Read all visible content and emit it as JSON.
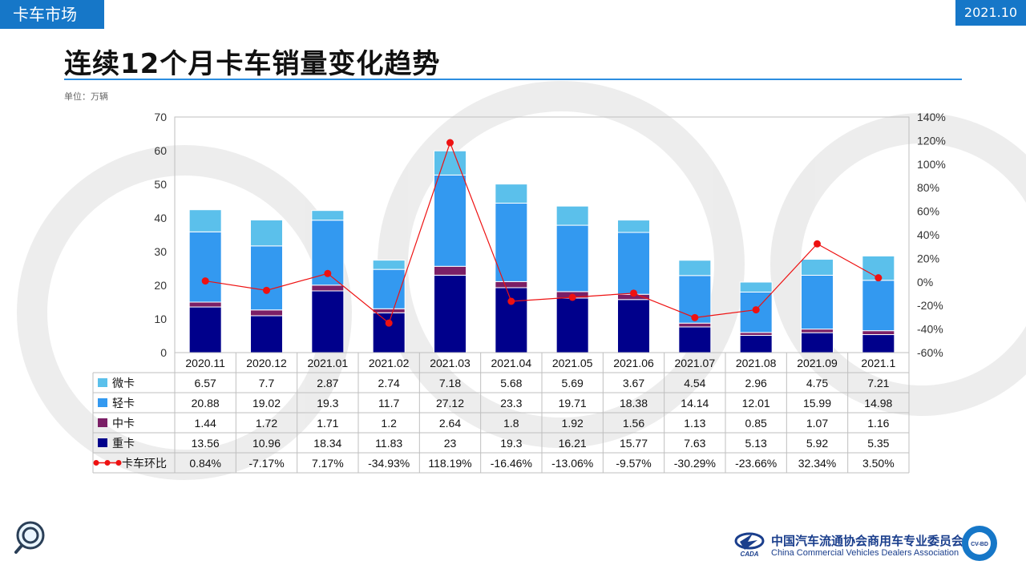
{
  "header": {
    "section_tag": "卡车市场",
    "date": "2021.10",
    "title": "连续12个月卡车销量变化趋势",
    "unit": "单位：万辆"
  },
  "footer": {
    "org_cn": "中国汽车流通协会商用车专业委员会",
    "org_en": "China Commercial Vehicles Dealers Association",
    "logo_text": "CADA",
    "badge_text": "CV-BD"
  },
  "colors": {
    "micro": "#5bc0eb",
    "light": "#3399f0",
    "medium": "#7b1f66",
    "heavy": "#00008b",
    "mom": "#ee1111",
    "accent": "#1677c8"
  },
  "chart_data": {
    "type": "bar",
    "stacked": true,
    "categories": [
      "2020.11",
      "2020.12",
      "2021.01",
      "2021.02",
      "2021.03",
      "2021.04",
      "2021.05",
      "2021.06",
      "2021.07",
      "2021.08",
      "2021.09",
      "2021.1"
    ],
    "series": [
      {
        "name": "微卡",
        "values": [
          6.57,
          7.7,
          2.87,
          2.74,
          7.18,
          5.68,
          5.69,
          3.67,
          4.54,
          2.96,
          4.75,
          7.21
        ]
      },
      {
        "name": "轻卡",
        "values": [
          20.88,
          19.02,
          19.3,
          11.7,
          27.12,
          23.3,
          19.71,
          18.38,
          14.14,
          12.01,
          15.99,
          14.98
        ]
      },
      {
        "name": "中卡",
        "values": [
          1.44,
          1.72,
          1.71,
          1.2,
          2.64,
          1.8,
          1.92,
          1.56,
          1.13,
          0.85,
          1.07,
          1.16
        ]
      },
      {
        "name": "重卡",
        "values": [
          13.56,
          10.96,
          18.34,
          11.83,
          23,
          19.3,
          16.21,
          15.77,
          7.63,
          5.13,
          5.92,
          5.35
        ]
      }
    ],
    "line_series": {
      "name": "卡车环比",
      "values": [
        0.84,
        -7.17,
        7.17,
        -34.93,
        118.19,
        -16.46,
        -13.06,
        -9.57,
        -30.29,
        -23.66,
        32.34,
        3.5
      ],
      "labels": [
        "0.84%",
        "-7.17%",
        "7.17%",
        "-34.93%",
        "118.19%",
        "-16.46%",
        "-13.06%",
        "-9.57%",
        "-30.29%",
        "-23.66%",
        "32.34%",
        "3.50%"
      ],
      "axis": "right"
    },
    "ylim": [
      0,
      70
    ],
    "yticks": [
      "0",
      "10",
      "20",
      "30",
      "40",
      "50",
      "60",
      "70"
    ],
    "y2lim": [
      -60,
      140
    ],
    "y2ticks": [
      "-60%",
      "-40%",
      "-20%",
      "0%",
      "20%",
      "40%",
      "60%",
      "80%",
      "100%",
      "120%",
      "140%"
    ],
    "data_table": true,
    "grid": false
  }
}
